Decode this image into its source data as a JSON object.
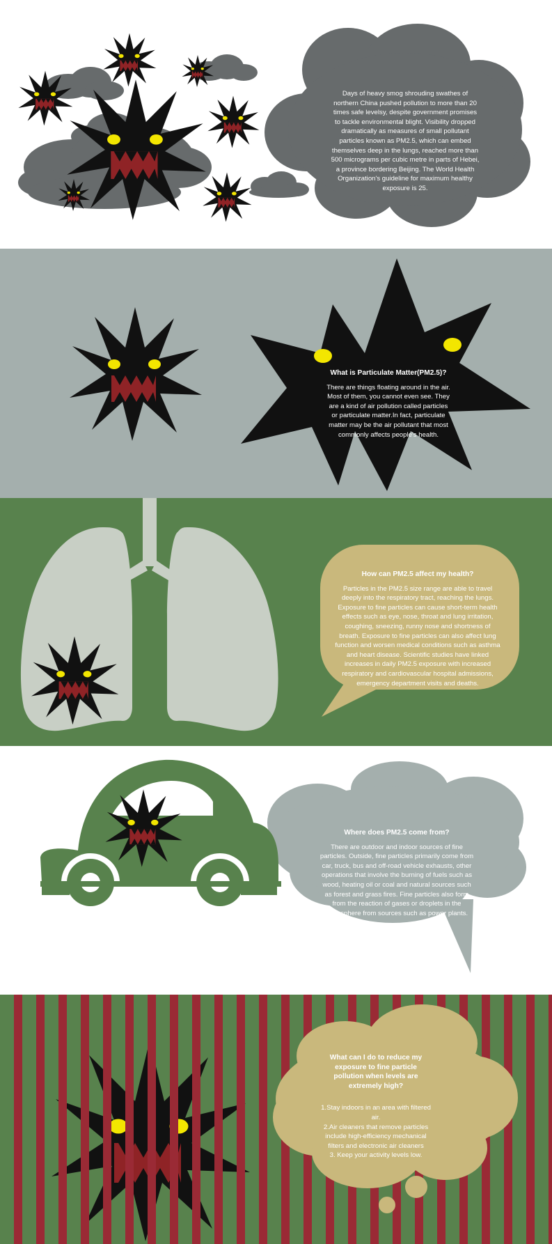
{
  "section1": {
    "body": "Days of heavy smog shrouding swathes of northern China pushed pollution to more than 20 times safe levelsy, despite government promises to tackle environmental blight. Visibility dropped dramatically as measures of small pollutant particles known as PM2.5, which can embed themselves deep in the lungs, reached more than 500 micrograms per cubic metre in parts of Hebei, a province bordering Beijing. The World Health Organization's guideline for maximum healthy exposure is 25."
  },
  "section2": {
    "heading": "What is Particulate Matter(PM2.5)?",
    "body": "There are things floating around in the air. Most of them, you cannot even see. They are a kind of air pollution called particles or particulate matter.In fact, particulate matter may be the air pollutant that most commonly affects people's health."
  },
  "section3": {
    "heading": "How can PM2.5 affect my health?",
    "body": "Particles in the PM2.5 size range are able to travel deeply into the respiratory tract, reaching the lungs. Exposure to fine particles can cause short-term health effects such as eye, nose, throat and lung irritation, coughing, sneezing, runny nose and shortness of breath. Exposure to fine particles can also affect lung function and worsen medical conditions such as asthma and heart disease. Scientific studies have linked increases in daily PM2.5 exposure with increased respiratory and cardiovascular hospital admissions, emergency department visits and deaths."
  },
  "section4": {
    "heading": "Where does PM2.5 come from?",
    "body": "There are outdoor and indoor sources of fine particles. Outside, fine particles primarily come from car, truck, bus and off-road vehicle exhausts, other operations that involve the burning of fuels such as wood, heating oil or coal and natural sources such as forest and grass fires. Fine particles also form from the reaction of gases or droplets in the atmosphere from sources such as power plants."
  },
  "section5": {
    "heading": "What can I do to reduce my exposure to fine particle pollution when levels are extremely high?",
    "items": [
      "1.Stay indoors in an area with filtered air.",
      "2.Air cleaners that remove particles include high-efficiency mechanical filters and electronic air cleaners",
      "3. Keep your activity levels low."
    ]
  },
  "colors": {
    "smog_gray": "#676b6c",
    "slate": "#a4afad",
    "green": "#58824d",
    "lung": "#c8cfc5",
    "tan": "#c9b87c",
    "bar_red": "#9a2a35",
    "monster": "#111111",
    "eye": "#f3e600",
    "mouth": "#8f2326"
  }
}
